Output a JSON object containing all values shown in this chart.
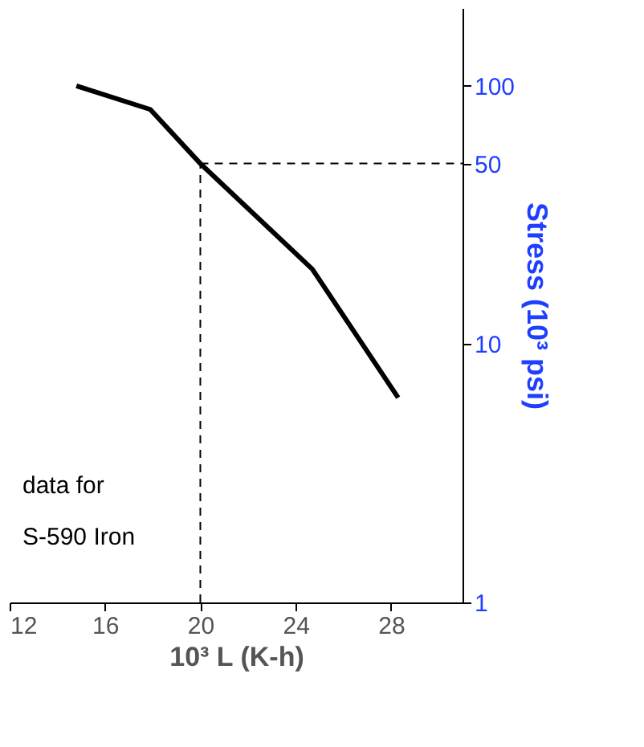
{
  "chart_data": {
    "type": "line",
    "xlabel": "10³ L (K-h)",
    "ylabel": "Stress (10³ psi)",
    "x": [
      14.8,
      17.9,
      20,
      24.7,
      28.3
    ],
    "series": [
      {
        "color": "#000000",
        "values": [
          100,
          81,
          50,
          19.5,
          6.2
        ]
      }
    ],
    "log": "y",
    "xlim": [
      12,
      31
    ],
    "xticks": [
      12,
      16,
      20,
      24,
      28
    ],
    "ylim": [
      1,
      200
    ],
    "yticks": [
      1,
      10,
      50,
      100
    ],
    "ref_lines": [
      {
        "axis": "y",
        "value": 50,
        "line_style": "dashed",
        "color": "#000000"
      },
      {
        "axis": "x",
        "value": 20,
        "line_style": "dashed",
        "color": "#000000"
      }
    ],
    "annotations": [
      {
        "text": "data for\nS-590 Iron"
      }
    ],
    "grid": false,
    "marker": "none",
    "line_style": "solid"
  }
}
